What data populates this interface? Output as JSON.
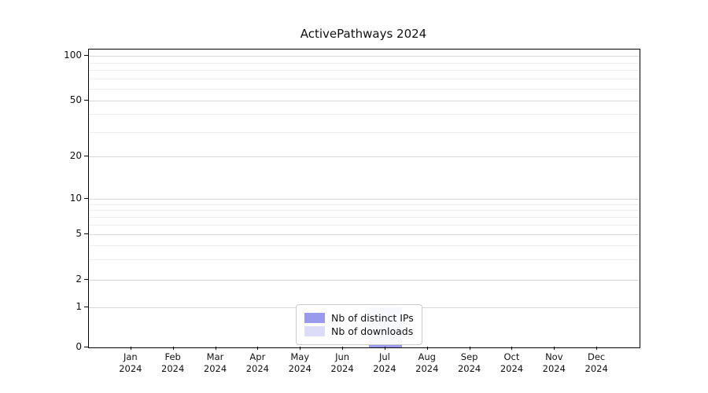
{
  "title": "ActivePathways 2024",
  "chart_data": {
    "type": "bar",
    "title": "ActivePathways 2024",
    "categories": [
      "Jan 2024",
      "Feb 2024",
      "Mar 2024",
      "Apr 2024",
      "May 2024",
      "Jun 2024",
      "Jul 2024",
      "Aug 2024",
      "Sep 2024",
      "Oct 2024",
      "Nov 2024",
      "Dec 2024"
    ],
    "series": [
      {
        "name": "Nb of distinct IPs",
        "color": "#9a9aec",
        "values": [
          0,
          0,
          0,
          0,
          0,
          0,
          1,
          0,
          0,
          0,
          0,
          0
        ]
      },
      {
        "name": "Nb of downloads",
        "color": "#dcdcf8",
        "values": [
          0,
          0,
          0,
          0,
          0,
          0,
          1,
          0,
          0,
          0,
          0,
          0
        ]
      }
    ],
    "xlabel": "",
    "ylabel": "",
    "y_scale": "symlog",
    "y_ticks": [
      0,
      1,
      2,
      5,
      10,
      20,
      50,
      100
    ],
    "y_minor_ticks": [
      3,
      4,
      6,
      7,
      8,
      9,
      30,
      40,
      60,
      70,
      80,
      90
    ],
    "ylim": [
      0,
      112
    ],
    "grid": true,
    "legend_position": "lower center"
  }
}
